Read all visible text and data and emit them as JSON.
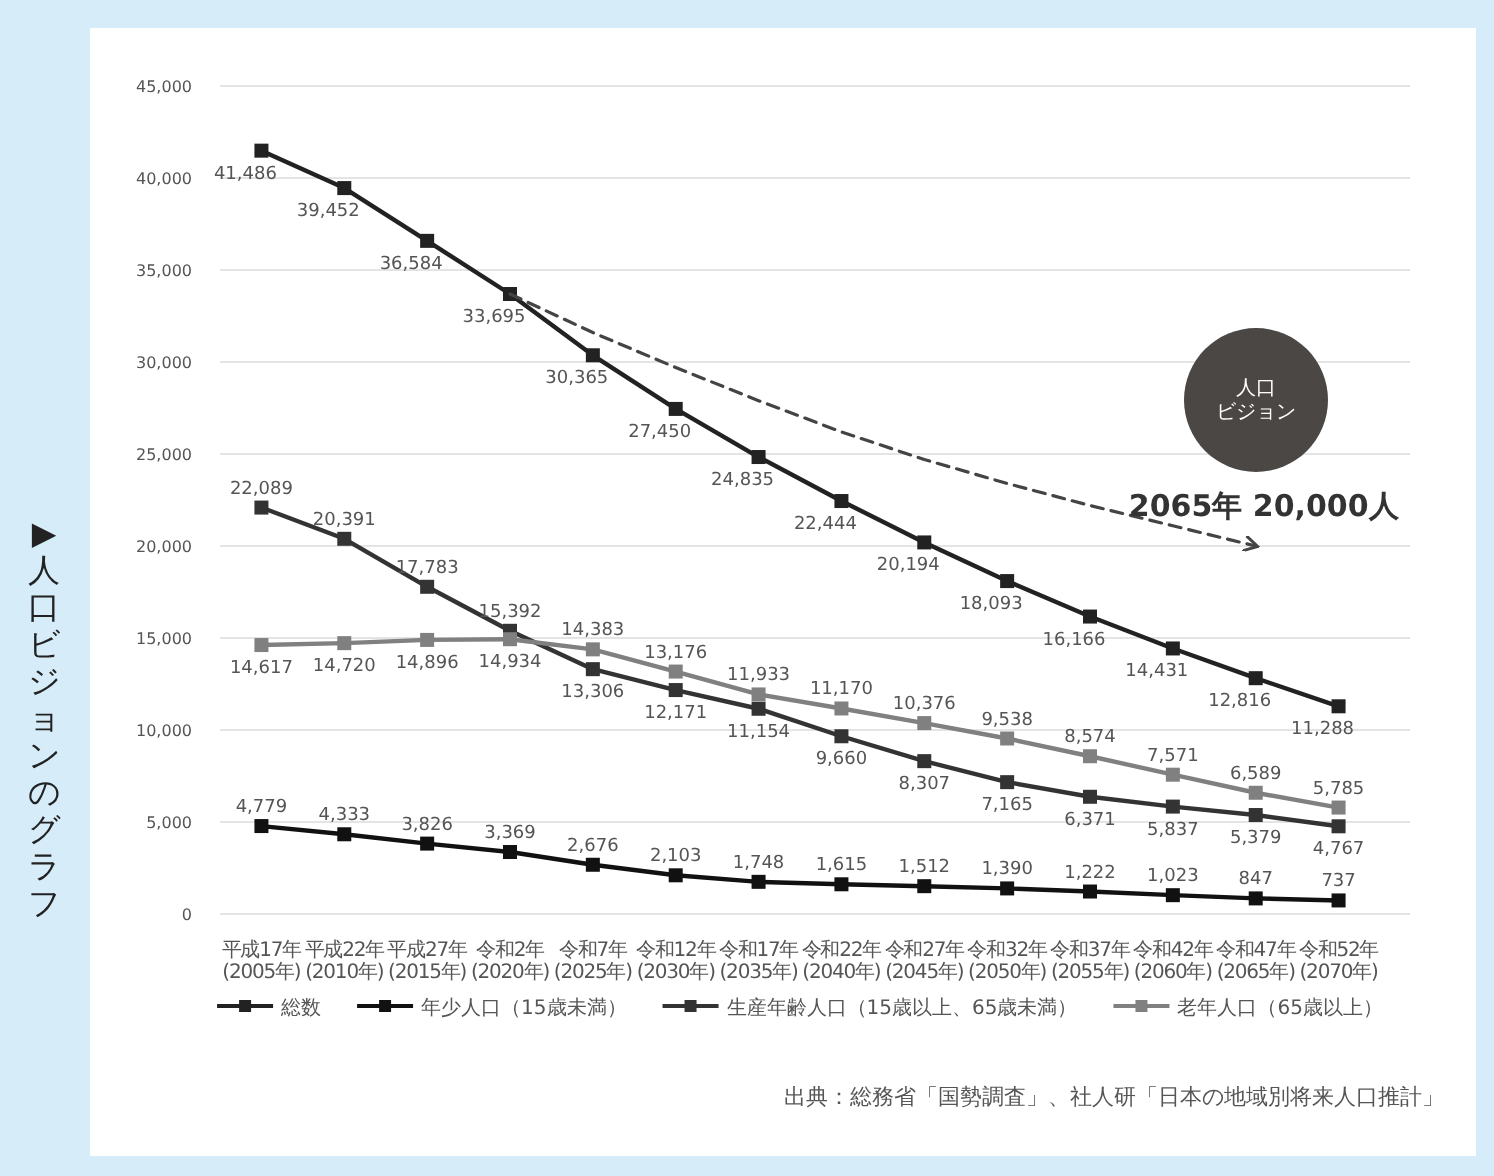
{
  "chart_data": {
    "type": "line",
    "title": "▶人口ビジョンのグラフ",
    "categories": [
      "平成17年 (2005年)",
      "平成22年 (2010年)",
      "平成27年 (2015年)",
      "令和2年 (2020年)",
      "令和7年 (2025年)",
      "令和12年 (2030年)",
      "令和17年 (2035年)",
      "令和22年 (2040年)",
      "令和27年 (2045年)",
      "令和32年 (2050年)",
      "令和37年 (2055年)",
      "令和42年 (2060年)",
      "令和47年 (2065年)",
      "令和52年 (2070年)"
    ],
    "series": [
      {
        "name": "総数",
        "color": "#222222",
        "values": [
          41486,
          39452,
          36584,
          33695,
          30365,
          27450,
          24835,
          22444,
          20194,
          18093,
          16166,
          14431,
          12816,
          11288
        ],
        "value_labels": [
          "41,486",
          "39,452",
          "36,584",
          "33,695",
          "30,365",
          "27,450",
          "24,835",
          "22,444",
          "20,194",
          "18,093",
          "16,166",
          "14,431",
          "12,816",
          "11,288"
        ]
      },
      {
        "name": "年少人口（15歳未満）",
        "color": "#111111",
        "values": [
          4779,
          4333,
          3826,
          3369,
          2676,
          2103,
          1748,
          1615,
          1512,
          1390,
          1222,
          1023,
          847,
          737
        ],
        "value_labels": [
          "4,779",
          "4,333",
          "3,826",
          "3,369",
          "2,676",
          "2,103",
          "1,748",
          "1,615",
          "1,512",
          "1,390",
          "1,222",
          "1,023",
          "847",
          "737"
        ]
      },
      {
        "name": "生産年齢人口（15歳以上、65歳未満）",
        "color": "#333333",
        "values": [
          22089,
          20391,
          17783,
          15392,
          13306,
          12171,
          11154,
          9660,
          8307,
          7165,
          6371,
          5837,
          5379,
          4767
        ],
        "value_labels": [
          "22,089",
          "20,391",
          "17,783",
          "15,392",
          "13,306",
          "12,171",
          "11,154",
          "9,660",
          "8,307",
          "7,165",
          "6,371",
          "5,837",
          "5,379",
          "4,767"
        ]
      },
      {
        "name": "老年人口（65歳以上）",
        "color": "#808080",
        "values": [
          14617,
          14720,
          14896,
          14934,
          14383,
          13176,
          11933,
          11170,
          10376,
          9538,
          8574,
          7571,
          6589,
          5785
        ],
        "value_labels": [
          "14,617",
          "14,720",
          "14,896",
          "14,934",
          "14,383",
          "13,176",
          "11,933",
          "11,170",
          "10,376",
          "9,538",
          "8,574",
          "7,571",
          "6,589",
          "5,785"
        ]
      },
      {
        "type": "line",
        "color": "#444444",
        "line_style": "dashed",
        "marker": "none",
        "values": [
          null,
          null,
          null,
          33695,
          31600,
          29700,
          27900,
          26200,
          24700,
          23400,
          22200,
          21100,
          20000,
          null
        ]
      }
    ],
    "ylim": [
      0,
      45000
    ],
    "yticks": [
      {
        "value": 0,
        "label": "0"
      },
      {
        "value": 5000,
        "label": "5,000"
      },
      {
        "value": 10000,
        "label": "10,000"
      },
      {
        "value": 15000,
        "label": "15,000"
      },
      {
        "value": 20000,
        "label": "20,000"
      },
      {
        "value": 25000,
        "label": "25,000"
      },
      {
        "value": 30000,
        "label": "30,000"
      },
      {
        "value": 35000,
        "label": "35,000"
      },
      {
        "value": 40000,
        "label": "40,000"
      },
      {
        "value": 45000,
        "label": "45,000"
      }
    ],
    "grid": "y",
    "legend": "bottom",
    "marker": "square",
    "line_style": "solid",
    "annotations": [
      {
        "text": "2065年 20,000人",
        "x": "令和47年 (2065年)",
        "y": 20000
      },
      "人口ビジョン",
      "出典：総務省「国勢調査」、社人研「日本の地域別将来人口推計」"
    ]
  }
}
